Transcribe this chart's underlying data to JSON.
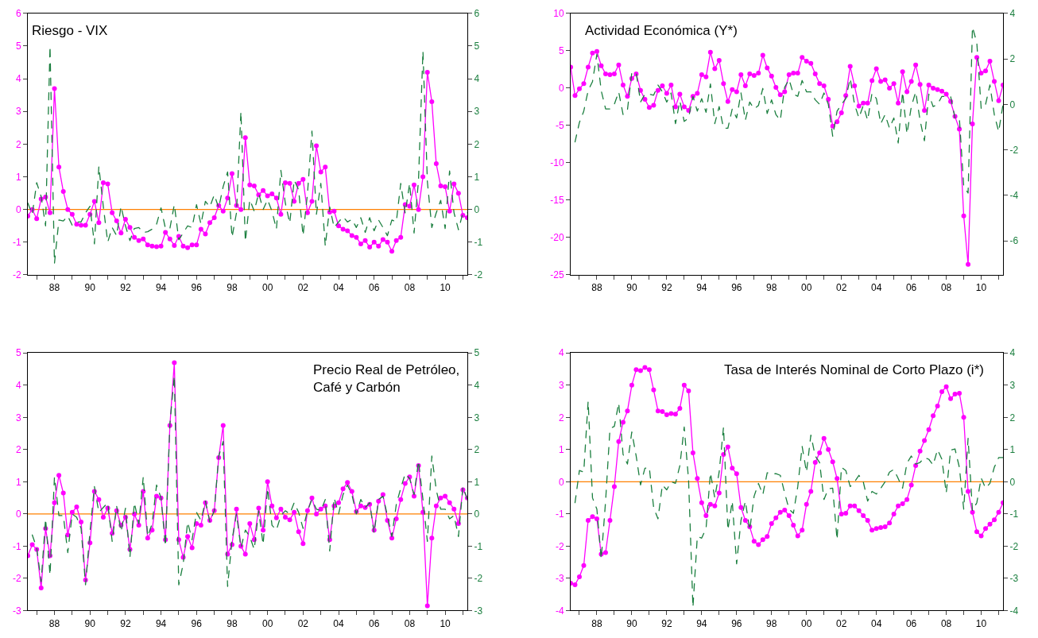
{
  "chart_data": [
    {
      "type": "line",
      "title": "Riesgo - VIX",
      "xlim": [
        1986.5,
        2011.25
      ],
      "ylim": [
        -2,
        6
      ],
      "yticks": [
        -2,
        -1,
        0,
        1,
        2,
        3,
        4,
        5,
        6
      ],
      "y2lim": [
        -2,
        6
      ],
      "y2ticks": [
        -2,
        -1,
        0,
        1,
        2,
        3,
        4,
        5,
        6
      ],
      "xticks": [
        {
          "value": 1987,
          "label": null
        },
        {
          "value": 1988,
          "label": "88"
        },
        {
          "value": 1989,
          "label": null
        },
        {
          "value": 1990,
          "label": "90"
        },
        {
          "value": 1991,
          "label": null
        },
        {
          "value": 1992,
          "label": "92"
        },
        {
          "value": 1993,
          "label": null
        },
        {
          "value": 1994,
          "label": "94"
        },
        {
          "value": 1995,
          "label": null
        },
        {
          "value": 1996,
          "label": "96"
        },
        {
          "value": 1997,
          "label": null
        },
        {
          "value": 1998,
          "label": "98"
        },
        {
          "value": 1999,
          "label": null
        },
        {
          "value": 2000,
          "label": "00"
        },
        {
          "value": 2001,
          "label": null
        },
        {
          "value": 2002,
          "label": "02"
        },
        {
          "value": 2003,
          "label": null
        },
        {
          "value": 2004,
          "label": "04"
        },
        {
          "value": 2005,
          "label": null
        },
        {
          "value": 2006,
          "label": "06"
        },
        {
          "value": 2007,
          "label": null
        },
        {
          "value": 2008,
          "label": "08"
        },
        {
          "value": 2009,
          "label": null
        },
        {
          "value": 2010,
          "label": "10"
        },
        {
          "value": 2011,
          "label": null
        }
      ],
      "x": [
        1986.5,
        1986.75,
        1987,
        1987.25,
        1987.5,
        1987.75,
        1988,
        1988.25,
        1988.5,
        1988.75,
        1989,
        1989.25,
        1989.5,
        1989.75,
        1990,
        1990.25,
        1990.5,
        1990.75,
        1991,
        1991.25,
        1991.5,
        1991.75,
        1992,
        1992.25,
        1992.5,
        1992.75,
        1993,
        1993.25,
        1993.5,
        1993.75,
        1994,
        1994.25,
        1994.5,
        1994.75,
        1995,
        1995.25,
        1995.5,
        1995.75,
        1996,
        1996.25,
        1996.5,
        1996.75,
        1997,
        1997.25,
        1997.5,
        1997.75,
        1998,
        1998.25,
        1998.5,
        1998.75,
        1999,
        1999.25,
        1999.5,
        1999.75,
        2000,
        2000.25,
        2000.5,
        2000.75,
        2001,
        2001.25,
        2001.5,
        2001.75,
        2002,
        2002.25,
        2002.5,
        2002.75,
        2003,
        2003.25,
        2003.5,
        2003.75,
        2004,
        2004.25,
        2004.5,
        2004.75,
        2005,
        2005.25,
        2005.5,
        2005.75,
        2006,
        2006.25,
        2006.5,
        2006.75,
        2007,
        2007.25,
        2007.5,
        2007.75,
        2008,
        2008.25,
        2008.5,
        2008.75,
        2009,
        2009.25,
        2009.5,
        2009.75,
        2010,
        2010.25,
        2010.5,
        2010.75,
        2011,
        2011.25
      ],
      "series": [
        {
          "color": "#ff00ff",
          "marker": "circle",
          "line_style": "solid",
          "values": [
            -0.2,
            0.0,
            -0.28,
            0.32,
            0.38,
            -0.1,
            3.7,
            1.3,
            0.55,
            0.0,
            -0.15,
            -0.45,
            -0.48,
            -0.48,
            -0.15,
            0.25,
            -0.4,
            0.82,
            0.78,
            -0.1,
            -0.35,
            -0.72,
            -0.3,
            -0.55,
            -0.85,
            -0.95,
            -0.9,
            -1.08,
            -1.12,
            -1.14,
            -1.12,
            -0.7,
            -0.9,
            -1.1,
            -0.82,
            -1.12,
            -1.17,
            -1.08,
            -1.08,
            -0.6,
            -0.75,
            -0.4,
            -0.25,
            0.12,
            -0.05,
            0.35,
            1.1,
            0.12,
            0.0,
            2.2,
            0.75,
            0.72,
            0.45,
            0.58,
            0.42,
            0.48,
            0.35,
            -0.15,
            0.82,
            0.8,
            0.25,
            0.8,
            0.92,
            -0.1,
            0.25,
            1.95,
            1.15,
            1.3,
            -0.08,
            -0.05,
            -0.5,
            -0.6,
            -0.65,
            -0.8,
            -0.85,
            -1.05,
            -0.95,
            -1.15,
            -1.0,
            -1.12,
            -0.92,
            -1.0,
            -1.28,
            -0.95,
            -0.85,
            0.15,
            0.1,
            0.75,
            0.0,
            1.0,
            4.2,
            3.3,
            1.4,
            0.72,
            0.7,
            -0.05,
            0.78,
            0.5,
            -0.18,
            -0.25
          ]
        },
        {
          "color": "#1b7f3f",
          "marker": "none",
          "line_style": "dashed",
          "axis": "y2",
          "values": [
            0.2,
            -0.15,
            0.82,
            0.4,
            -0.5,
            5.0,
            -1.65,
            -0.32,
            -0.35,
            -0.2,
            -0.48,
            -0.38,
            -0.38,
            -0.1,
            0.1,
            -1.05,
            1.32,
            0.1,
            -1.0,
            -0.55,
            -0.8,
            0.1,
            -0.5,
            -0.95,
            -0.58,
            -0.55,
            -0.7,
            -0.68,
            -0.6,
            -0.45,
            0.05,
            -0.58,
            -0.58,
            0.15,
            -0.92,
            -0.72,
            -0.5,
            -0.55,
            0.15,
            -0.45,
            0.25,
            0.08,
            0.45,
            0.05,
            0.7,
            1.15,
            -0.85,
            -0.1,
            3.0,
            -0.98,
            0.3,
            -0.05,
            0.5,
            0.0,
            0.3,
            -0.05,
            -0.6,
            1.2,
            0.2,
            -0.42,
            0.9,
            0.6,
            -0.8,
            0.5,
            2.4,
            -0.15,
            0.8,
            -1.12,
            0.08,
            -0.55,
            -0.38,
            -0.22,
            -0.38,
            -0.3,
            -0.55,
            -0.25,
            -0.7,
            -0.25,
            -0.65,
            -0.32,
            -0.55,
            -0.8,
            -0.32,
            -0.38,
            0.8,
            -0.12,
            0.8,
            -0.72,
            0.9,
            4.85,
            0.85,
            -0.55,
            -0.1,
            0.28,
            -0.58,
            1.18,
            -0.1,
            -0.62,
            -0.1,
            -0.1
          ]
        }
      ],
      "ref_lines": [
        {
          "axis": "y",
          "value": 0,
          "color": "#ff8000"
        }
      ]
    },
    {
      "type": "line",
      "title": "Actividad Económica (Y*)",
      "xlim": [
        1986.5,
        2011.25
      ],
      "ylim": [
        -25,
        10
      ],
      "yticks": [
        -25,
        -20,
        -15,
        -10,
        -5,
        0,
        5,
        10
      ],
      "y2lim": [
        -7.5,
        4
      ],
      "y2ticks": [
        -6,
        -4,
        -2,
        0,
        2,
        4
      ],
      "xticks": [
        {
          "value": 1987,
          "label": null
        },
        {
          "value": 1988,
          "label": "88"
        },
        {
          "value": 1989,
          "label": null
        },
        {
          "value": 1990,
          "label": "90"
        },
        {
          "value": 1991,
          "label": null
        },
        {
          "value": 1992,
          "label": "92"
        },
        {
          "value": 1993,
          "label": null
        },
        {
          "value": 1994,
          "label": "94"
        },
        {
          "value": 1995,
          "label": null
        },
        {
          "value": 1996,
          "label": "96"
        },
        {
          "value": 1997,
          "label": null
        },
        {
          "value": 1998,
          "label": "98"
        },
        {
          "value": 1999,
          "label": null
        },
        {
          "value": 2000,
          "label": "00"
        },
        {
          "value": 2001,
          "label": null
        },
        {
          "value": 2002,
          "label": "02"
        },
        {
          "value": 2003,
          "label": null
        },
        {
          "value": 2004,
          "label": "04"
        },
        {
          "value": 2005,
          "label": null
        },
        {
          "value": 2006,
          "label": "06"
        },
        {
          "value": 2007,
          "label": null
        },
        {
          "value": 2008,
          "label": "08"
        },
        {
          "value": 2009,
          "label": null
        },
        {
          "value": 2010,
          "label": "10"
        },
        {
          "value": 2011,
          "label": null
        }
      ],
      "x": [
        1986.5,
        1986.75,
        1987,
        1987.25,
        1987.5,
        1987.75,
        1988,
        1988.25,
        1988.5,
        1988.75,
        1989,
        1989.25,
        1989.5,
        1989.75,
        1990,
        1990.25,
        1990.5,
        1990.75,
        1991,
        1991.25,
        1991.5,
        1991.75,
        1992,
        1992.25,
        1992.5,
        1992.75,
        1993,
        1993.25,
        1993.5,
        1993.75,
        1994,
        1994.25,
        1994.5,
        1994.75,
        1995,
        1995.25,
        1995.5,
        1995.75,
        1996,
        1996.25,
        1996.5,
        1996.75,
        1997,
        1997.25,
        1997.5,
        1997.75,
        1998,
        1998.25,
        1998.5,
        1998.75,
        1999,
        1999.25,
        1999.5,
        1999.75,
        2000,
        2000.25,
        2000.5,
        2000.75,
        2001,
        2001.25,
        2001.5,
        2001.75,
        2002,
        2002.25,
        2002.5,
        2002.75,
        2003,
        2003.25,
        2003.5,
        2003.75,
        2004,
        2004.25,
        2004.5,
        2004.75,
        2005,
        2005.25,
        2005.5,
        2005.75,
        2006,
        2006.25,
        2006.5,
        2006.75,
        2007,
        2007.25,
        2007.5,
        2007.75,
        2008,
        2008.25,
        2008.5,
        2008.75,
        2009,
        2009.25,
        2009.5,
        2009.75,
        2010,
        2010.25,
        2010.5,
        2010.75,
        2011,
        2011.25
      ],
      "series": [
        {
          "color": "#ff00ff",
          "marker": "circle",
          "line_style": "solid",
          "values": [
            2.8,
            -1.0,
            -0.1,
            0.6,
            2.8,
            4.7,
            4.9,
            3.0,
            1.9,
            1.8,
            1.9,
            3.1,
            0.4,
            -1.1,
            1.3,
            1.9,
            -0.3,
            -1.5,
            -2.6,
            -2.3,
            -0.3,
            0.3,
            -0.7,
            0.4,
            -2.5,
            -0.8,
            -2.5,
            -3.0,
            -1.1,
            -0.7,
            1.8,
            1.5,
            4.8,
            2.6,
            3.7,
            0.6,
            -1.8,
            -0.2,
            -0.5,
            1.8,
            0.3,
            1.9,
            1.7,
            2.0,
            4.4,
            2.7,
            1.6,
            0.1,
            -0.9,
            -0.5,
            1.8,
            2.0,
            2.0,
            4.1,
            3.6,
            3.3,
            1.9,
            0.6,
            0.3,
            -1.5,
            -5.1,
            -4.5,
            -3.3,
            -1.0,
            2.9,
            0.3,
            -2.4,
            -2.0,
            -2.0,
            1.0,
            2.6,
            0.9,
            1.1,
            0.0,
            0.6,
            -2.0,
            2.2,
            -0.5,
            0.9,
            3.1,
            0.5,
            -3.0,
            0.4,
            0.0,
            -0.2,
            -0.4,
            -0.8,
            -1.8,
            -3.8,
            -5.5,
            -17.1,
            -23.6,
            -4.8,
            4.1,
            2.0,
            2.3,
            3.6,
            0.9,
            -1.7,
            0.4
          ]
        },
        {
          "color": "#1b7f3f",
          "marker": "none",
          "line_style": "dashed",
          "axis": "y2",
          "values": [
            null,
            -1.65,
            -0.8,
            -0.3,
            0.6,
            1.0,
            2.2,
            0.6,
            -0.2,
            -0.2,
            0.0,
            0.55,
            -0.45,
            -0.25,
            1.4,
            1.4,
            0.1,
            0.45,
            0.45,
            0.4,
            0.85,
            0.55,
            0.1,
            0.5,
            -0.85,
            0.15,
            -0.75,
            -0.6,
            0.35,
            -0.3,
            0.25,
            -0.35,
            0.9,
            -0.85,
            -0.1,
            -1.05,
            -1.05,
            -0.2,
            -0.6,
            0.5,
            -0.7,
            0.1,
            -0.2,
            -0.05,
            0.7,
            -0.4,
            0.2,
            -0.45,
            -0.7,
            0.75,
            1.1,
            0.45,
            0.35,
            1.05,
            0.55,
            0.55,
            0.2,
            0.0,
            0.5,
            0.0,
            -1.4,
            -0.3,
            0.0,
            0.25,
            1.15,
            0.0,
            -0.6,
            -0.05,
            -0.7,
            0.5,
            0.25,
            -0.85,
            -0.45,
            -1.05,
            -0.6,
            -1.7,
            0.55,
            -1.3,
            -0.1,
            0.55,
            -0.7,
            -1.6,
            0.45,
            -0.1,
            0.0,
            0.35,
            0.35,
            0.35,
            -0.6,
            -0.6,
            -3.6,
            -3.9,
            3.4,
            2.7,
            -0.2,
            0.0,
            0.85,
            -0.45,
            -1.2,
            0.0
          ]
        }
      ]
    },
    {
      "type": "line",
      "title": "Precio Real de Petróleo,\nCafé y Carbón",
      "xlim": [
        1986.5,
        2011.25
      ],
      "ylim": [
        -3,
        5
      ],
      "yticks": [
        -3,
        -2,
        -1,
        0,
        1,
        2,
        3,
        4,
        5
      ],
      "y2lim": [
        -3,
        5
      ],
      "y2ticks": [
        -3,
        -2,
        -1,
        0,
        1,
        2,
        3,
        4,
        5
      ],
      "xticks": [
        {
          "value": 1987,
          "label": null
        },
        {
          "value": 1988,
          "label": "88"
        },
        {
          "value": 1989,
          "label": null
        },
        {
          "value": 1990,
          "label": "90"
        },
        {
          "value": 1991,
          "label": null
        },
        {
          "value": 1992,
          "label": "92"
        },
        {
          "value": 1993,
          "label": null
        },
        {
          "value": 1994,
          "label": "94"
        },
        {
          "value": 1995,
          "label": null
        },
        {
          "value": 1996,
          "label": "96"
        },
        {
          "value": 1997,
          "label": null
        },
        {
          "value": 1998,
          "label": "98"
        },
        {
          "value": 1999,
          "label": null
        },
        {
          "value": 2000,
          "label": "00"
        },
        {
          "value": 2001,
          "label": null
        },
        {
          "value": 2002,
          "label": "02"
        },
        {
          "value": 2003,
          "label": null
        },
        {
          "value": 2004,
          "label": "04"
        },
        {
          "value": 2005,
          "label": null
        },
        {
          "value": 2006,
          "label": "06"
        },
        {
          "value": 2007,
          "label": null
        },
        {
          "value": 2008,
          "label": "08"
        },
        {
          "value": 2009,
          "label": null
        },
        {
          "value": 2010,
          "label": "10"
        },
        {
          "value": 2011,
          "label": null
        }
      ],
      "x": [
        1986.5,
        1986.75,
        1987,
        1987.25,
        1987.5,
        1987.75,
        1988,
        1988.25,
        1988.5,
        1988.75,
        1989,
        1989.25,
        1989.5,
        1989.75,
        1990,
        1990.25,
        1990.5,
        1990.75,
        1991,
        1991.25,
        1991.5,
        1991.75,
        1992,
        1992.25,
        1992.5,
        1992.75,
        1993,
        1993.25,
        1993.5,
        1993.75,
        1994,
        1994.25,
        1994.5,
        1994.75,
        1995,
        1995.25,
        1995.5,
        1995.75,
        1996,
        1996.25,
        1996.5,
        1996.75,
        1997,
        1997.25,
        1997.5,
        1997.75,
        1998,
        1998.25,
        1998.5,
        1998.75,
        1999,
        1999.25,
        1999.5,
        1999.75,
        2000,
        2000.25,
        2000.5,
        2000.75,
        2001,
        2001.25,
        2001.5,
        2001.75,
        2002,
        2002.25,
        2002.5,
        2002.75,
        2003,
        2003.25,
        2003.5,
        2003.75,
        2004,
        2004.25,
        2004.5,
        2004.75,
        2005,
        2005.25,
        2005.5,
        2005.75,
        2006,
        2006.25,
        2006.5,
        2006.75,
        2007,
        2007.25,
        2007.5,
        2007.75,
        2008,
        2008.25,
        2008.5,
        2008.75,
        2009,
        2009.25,
        2009.5,
        2009.75,
        2010,
        2010.25,
        2010.5,
        2010.75,
        2011,
        2011.25
      ],
      "series": [
        {
          "color": "#ff00ff",
          "marker": "circle",
          "line_style": "solid",
          "values": [
            -1.3,
            -0.95,
            -1.1,
            -2.3,
            -0.45,
            -1.3,
            0.35,
            1.2,
            0.65,
            -0.65,
            0.05,
            0.22,
            -0.25,
            -2.05,
            -0.9,
            0.7,
            0.45,
            -0.1,
            0.18,
            -0.6,
            0.1,
            -0.35,
            -0.1,
            -1.1,
            0.0,
            -0.35,
            0.7,
            -0.75,
            -0.5,
            0.55,
            0.5,
            -0.8,
            2.75,
            4.7,
            -0.8,
            -1.35,
            -0.7,
            -1.05,
            -0.3,
            -0.35,
            0.35,
            -0.2,
            0.1,
            1.75,
            2.75,
            -1.25,
            -0.95,
            0.15,
            -1.0,
            -1.25,
            -0.3,
            -0.8,
            0.18,
            -0.5,
            1.0,
            0.25,
            -0.12,
            0.15,
            -0.1,
            -0.18,
            0.05,
            -0.55,
            -0.92,
            0.1,
            0.5,
            0.0,
            0.15,
            0.25,
            -0.8,
            0.25,
            0.35,
            0.78,
            0.98,
            0.7,
            0.08,
            0.25,
            0.2,
            0.3,
            -0.5,
            0.4,
            0.6,
            -0.2,
            -0.75,
            -0.15,
            0.45,
            0.95,
            1.15,
            0.55,
            1.5,
            0.05,
            -2.85,
            -0.75,
            0.25,
            0.5,
            0.55,
            0.35,
            0.15,
            -0.3,
            0.75,
            0.5
          ]
        },
        {
          "color": "#1b7f3f",
          "marker": "none",
          "line_style": "dashed",
          "axis": "y2",
          "values": [
            null,
            -0.65,
            -1.05,
            -2.1,
            -0.15,
            -1.9,
            1.15,
            -0.05,
            -0.05,
            -1.2,
            0.0,
            -0.1,
            -0.45,
            -2.2,
            -0.55,
            0.85,
            0.05,
            0.2,
            0.35,
            -0.85,
            0.25,
            -0.55,
            0.18,
            -1.35,
            0.35,
            -0.3,
            1.15,
            -0.7,
            -0.3,
            0.9,
            0.5,
            -1.0,
            2.8,
            4.3,
            -2.2,
            -1.55,
            -0.25,
            -0.8,
            0.05,
            -0.2,
            0.4,
            -0.25,
            0.1,
            1.8,
            2.25,
            -2.25,
            -0.8,
            0.0,
            -1.05,
            -0.5,
            -0.7,
            -1.1,
            0.1,
            -0.95,
            0.8,
            -0.35,
            -0.5,
            -0.05,
            0.1,
            0.0,
            0.35,
            0.05,
            -0.45,
            0.1,
            0.45,
            0.15,
            0.1,
            0.45,
            -1.15,
            0.5,
            0.0,
            0.6,
            0.9,
            0.6,
            0.0,
            0.45,
            0.2,
            0.35,
            -0.6,
            0.45,
            0.55,
            -0.05,
            -0.7,
            0.3,
            0.8,
            1.25,
            1.1,
            0.6,
            1.65,
            0.45,
            -0.85,
            1.8,
            0.75,
            0.15,
            0.15,
            -0.15,
            -0.05,
            -0.7,
            0.85,
            0.45
          ]
        }
      ],
      "ref_lines": [
        {
          "axis": "y",
          "value": 0,
          "color": "#ff8000"
        }
      ]
    },
    {
      "type": "line",
      "title": "Tasa de Interés Nominal de Corto Plazo (i*)",
      "xlim": [
        1986.5,
        2011.25
      ],
      "ylim": [
        -4,
        4
      ],
      "yticks": [
        -4,
        -3,
        -2,
        -1,
        0,
        1,
        2,
        3,
        4
      ],
      "y2lim": [
        -4,
        4
      ],
      "y2ticks": [
        -4,
        -3,
        -2,
        -1,
        0,
        1,
        2,
        3,
        4
      ],
      "xticks": [
        {
          "value": 1987,
          "label": null
        },
        {
          "value": 1988,
          "label": "88"
        },
        {
          "value": 1989,
          "label": null
        },
        {
          "value": 1990,
          "label": "90"
        },
        {
          "value": 1991,
          "label": null
        },
        {
          "value": 1992,
          "label": "92"
        },
        {
          "value": 1993,
          "label": null
        },
        {
          "value": 1994,
          "label": "94"
        },
        {
          "value": 1995,
          "label": null
        },
        {
          "value": 1996,
          "label": "96"
        },
        {
          "value": 1997,
          "label": null
        },
        {
          "value": 1998,
          "label": "98"
        },
        {
          "value": 1999,
          "label": null
        },
        {
          "value": 2000,
          "label": "00"
        },
        {
          "value": 2001,
          "label": null
        },
        {
          "value": 2002,
          "label": "02"
        },
        {
          "value": 2003,
          "label": null
        },
        {
          "value": 2004,
          "label": "04"
        },
        {
          "value": 2005,
          "label": null
        },
        {
          "value": 2006,
          "label": "06"
        },
        {
          "value": 2007,
          "label": null
        },
        {
          "value": 2008,
          "label": "08"
        },
        {
          "value": 2009,
          "label": null
        },
        {
          "value": 2010,
          "label": "10"
        },
        {
          "value": 2011,
          "label": null
        }
      ],
      "x": [
        1986.5,
        1986.75,
        1987,
        1987.25,
        1987.5,
        1987.75,
        1988,
        1988.25,
        1988.5,
        1988.75,
        1989,
        1989.25,
        1989.5,
        1989.75,
        1990,
        1990.25,
        1990.5,
        1990.75,
        1991,
        1991.25,
        1991.5,
        1991.75,
        1992,
        1992.25,
        1992.5,
        1992.75,
        1993,
        1993.25,
        1993.5,
        1993.75,
        1994,
        1994.25,
        1994.5,
        1994.75,
        1995,
        1995.25,
        1995.5,
        1995.75,
        1996,
        1996.25,
        1996.5,
        1996.75,
        1997,
        1997.25,
        1997.5,
        1997.75,
        1998,
        1998.25,
        1998.5,
        1998.75,
        1999,
        1999.25,
        1999.5,
        1999.75,
        2000,
        2000.25,
        2000.5,
        2000.75,
        2001,
        2001.25,
        2001.5,
        2001.75,
        2002,
        2002.25,
        2002.5,
        2002.75,
        2003,
        2003.25,
        2003.5,
        2003.75,
        2004,
        2004.25,
        2004.5,
        2004.75,
        2005,
        2005.25,
        2005.5,
        2005.75,
        2006,
        2006.25,
        2006.5,
        2006.75,
        2007,
        2007.25,
        2007.5,
        2007.75,
        2008,
        2008.25,
        2008.5,
        2008.75,
        2009,
        2009.25,
        2009.5,
        2009.75,
        2010,
        2010.25,
        2010.5,
        2010.75,
        2011,
        2011.25
      ],
      "series": [
        {
          "color": "#ff00ff",
          "marker": "circle",
          "line_style": "solid",
          "values": [
            -3.15,
            -3.2,
            -2.95,
            -2.6,
            -1.2,
            -1.08,
            -1.15,
            -2.25,
            -2.2,
            -1.2,
            -0.15,
            1.25,
            1.85,
            2.2,
            3.0,
            3.48,
            3.45,
            3.55,
            3.48,
            2.85,
            2.2,
            2.18,
            2.08,
            2.12,
            2.1,
            2.28,
            3.0,
            2.82,
            0.9,
            0.1,
            -0.65,
            -1.05,
            -0.7,
            -0.75,
            -0.35,
            0.85,
            1.08,
            0.42,
            0.25,
            -0.8,
            -1.2,
            -1.4,
            -1.85,
            -1.95,
            -1.8,
            -1.7,
            -1.3,
            -1.12,
            -0.95,
            -0.88,
            -1.05,
            -1.35,
            -1.68,
            -1.5,
            -0.7,
            -0.3,
            0.6,
            0.9,
            1.35,
            1.0,
            0.62,
            0.1,
            -1.0,
            -0.98,
            -0.75,
            -0.75,
            -0.9,
            -1.05,
            -1.2,
            -1.5,
            -1.45,
            -1.42,
            -1.4,
            -1.28,
            -1.0,
            -0.75,
            -0.68,
            -0.55,
            -0.1,
            0.5,
            0.95,
            1.28,
            1.62,
            2.05,
            2.35,
            2.8,
            2.95,
            2.58,
            2.72,
            2.75,
            2.0,
            -0.3,
            -0.95,
            -1.55,
            -1.68,
            -1.45,
            -1.32,
            -1.18,
            -0.95,
            -0.65
          ]
        },
        {
          "color": "#1b7f3f",
          "marker": "none",
          "line_style": "dashed",
          "axis": "y2",
          "values": [
            null,
            -0.65,
            0.35,
            0.3,
            2.5,
            -0.5,
            -0.85,
            -2.4,
            -0.6,
            1.65,
            1.72,
            2.45,
            0.85,
            0.55,
            1.55,
            0.8,
            -0.1,
            0.42,
            0.45,
            -0.8,
            -1.15,
            -0.1,
            -0.25,
            0.0,
            -0.05,
            0.5,
            1.7,
            0.05,
            -3.9,
            -1.7,
            -1.75,
            -1.45,
            0.28,
            -0.5,
            0.3,
            1.7,
            -1.5,
            -0.6,
            -2.55,
            -1.2,
            -0.6,
            -1.5,
            -0.45,
            -0.05,
            -0.4,
            0.28,
            0.25,
            0.25,
            0.2,
            -0.35,
            -0.85,
            -0.98,
            -0.15,
            1.1,
            0.3,
            1.45,
            0.8,
            0.6,
            -0.55,
            -0.22,
            -0.2,
            -1.8,
            0.45,
            0.35,
            -0.15,
            0.0,
            0.2,
            0.0,
            -0.6,
            -0.3,
            -0.38,
            -0.2,
            0.0,
            0.3,
            0.38,
            0.1,
            -0.2,
            0.58,
            0.8,
            0.55,
            0.6,
            0.75,
            0.7,
            0.52,
            1.0,
            0.7,
            -0.35,
            0.98,
            1.02,
            0.45,
            -0.85,
            1.35,
            -0.9,
            -0.65,
            0.12,
            -0.2,
            -0.05,
            0.45,
            0.75,
            0.75
          ]
        }
      ],
      "ref_lines": [
        {
          "axis": "y",
          "value": 0,
          "color": "#ff8000"
        }
      ]
    }
  ]
}
